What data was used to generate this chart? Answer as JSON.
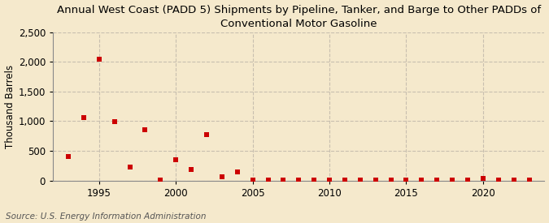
{
  "title": "Annual West Coast (PADD 5) Shipments by Pipeline, Tanker, and Barge to Other PADDs of\nConventional Motor Gasoline",
  "ylabel": "Thousand Barrels",
  "source": "Source: U.S. Energy Information Administration",
  "background_color": "#f5e9cc",
  "plot_background_color": "#f5e9cc",
  "marker_color": "#cc0000",
  "years": [
    1993,
    1994,
    1995,
    1996,
    1997,
    1998,
    1999,
    2000,
    2001,
    2002,
    2003,
    2004,
    2005,
    2006,
    2007,
    2008,
    2009,
    2010,
    2011,
    2012,
    2013,
    2014,
    2015,
    2016,
    2017,
    2018,
    2019,
    2020,
    2021,
    2022,
    2023
  ],
  "values": [
    400,
    1060,
    2040,
    985,
    230,
    860,
    5,
    350,
    190,
    775,
    65,
    150,
    5,
    5,
    5,
    5,
    5,
    5,
    5,
    5,
    5,
    5,
    5,
    5,
    5,
    5,
    5,
    35,
    5,
    5,
    5
  ],
  "xlim": [
    1992,
    2024
  ],
  "ylim": [
    0,
    2500
  ],
  "yticks": [
    0,
    500,
    1000,
    1500,
    2000,
    2500
  ],
  "xticks": [
    1995,
    2000,
    2005,
    2010,
    2015,
    2020
  ],
  "title_fontsize": 9.5,
  "axis_fontsize": 8.5,
  "source_fontsize": 7.5,
  "grid_color": "#c8bfaf",
  "spine_color": "#888888"
}
